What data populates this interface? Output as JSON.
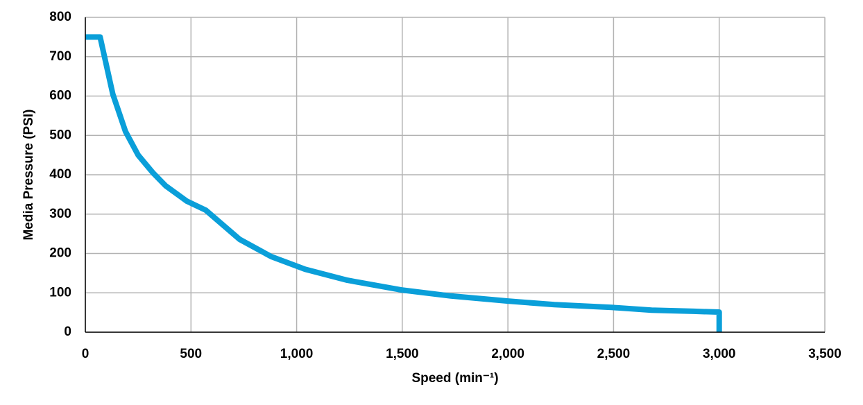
{
  "chart_data": {
    "type": "line",
    "x_label": "Speed (min⁻¹)",
    "y_label": "Media Pressure (PSI)",
    "x": [
      0,
      70,
      130,
      190,
      250,
      320,
      380,
      480,
      570,
      730,
      880,
      1040,
      1240,
      1500,
      1730,
      2000,
      2220,
      2490,
      2680,
      2880,
      3000,
      3000
    ],
    "series": [
      {
        "color": "#0a9fd9",
        "values": [
          750,
          750,
          605,
          510,
          450,
          405,
          372,
          333,
          310,
          236,
          192,
          160,
          132,
          107,
          92,
          79,
          70,
          63,
          56,
          53,
          51,
          0
        ]
      }
    ],
    "xlim": [
      0,
      3500
    ],
    "ylim": [
      0,
      800
    ],
    "xticks": [
      0,
      500,
      {
        "value": 1000,
        "label": "1,000"
      },
      {
        "value": 1500,
        "label": "1,500"
      },
      {
        "value": 2000,
        "label": "2,000"
      },
      {
        "value": 2500,
        "label": "2,500"
      },
      {
        "value": 3000,
        "label": "3,000"
      },
      {
        "value": 3500,
        "label": "3,500"
      }
    ],
    "yticks": [
      0,
      100,
      200,
      300,
      400,
      500,
      600,
      700,
      800
    ],
    "grid": true
  }
}
